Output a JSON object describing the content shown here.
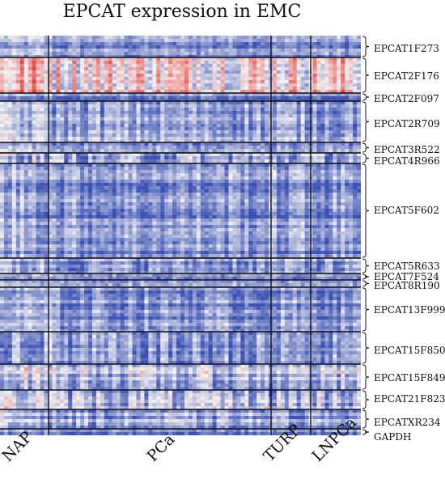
{
  "chart_data": {
    "type": "heatmap",
    "title": "EPCAT expression in EMC",
    "groups": [
      "NAP",
      "PCa",
      "TURP",
      "LNPCa"
    ],
    "genes": [
      "EPCAT1F273",
      "EPCAT2F176",
      "EPCAT2F097",
      "EPCAT2R709",
      "EPCAT3R522",
      "EPCAT4R966",
      "EPCAT5F602",
      "EPCAT5R633",
      "EPCAT7F524",
      "EPCAT8R190",
      "EPCAT13F999",
      "EPCAT15F850",
      "EPCAT15F849",
      "EPCAT21F823",
      "EPCATXR234",
      "GAPDH"
    ],
    "color_scale": {
      "low": "#3b52b4",
      "mid": "#f2f2f2",
      "high": "#e8403a"
    }
  }
}
